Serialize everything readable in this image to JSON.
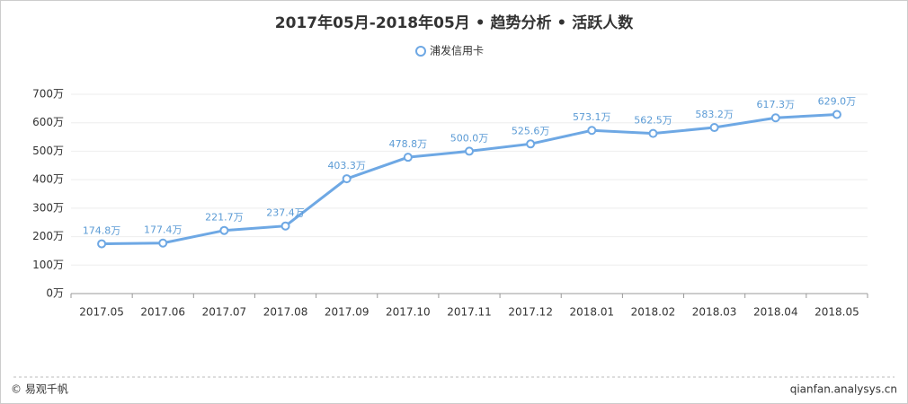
{
  "chart_data": {
    "type": "line",
    "title": "2017年05月-2018年05月 • 趋势分析 • 活跃人数",
    "categories": [
      "2017.05",
      "2017.06",
      "2017.07",
      "2017.08",
      "2017.09",
      "2017.10",
      "2017.11",
      "2017.12",
      "2018.01",
      "2018.02",
      "2018.03",
      "2018.04",
      "2018.05"
    ],
    "series": [
      {
        "name": "浦发信用卡",
        "color": "#6ea8e4",
        "values": [
          174.8,
          177.4,
          221.7,
          237.4,
          403.3,
          478.8,
          500.0,
          525.6,
          573.1,
          562.5,
          583.2,
          617.3,
          629.0
        ],
        "value_labels": [
          "174.8万",
          "177.4万",
          "221.7万",
          "237.4万",
          "403.3万",
          "478.8万",
          "500.0万",
          "525.6万",
          "573.1万",
          "562.5万",
          "583.2万",
          "617.3万",
          "629.0万"
        ]
      }
    ],
    "ylim": [
      0,
      700
    ],
    "yticks": [
      {
        "value": 0,
        "label": "0万"
      },
      {
        "value": 100,
        "label": "100万"
      },
      {
        "value": 200,
        "label": "200万"
      },
      {
        "value": 300,
        "label": "300万"
      },
      {
        "value": 400,
        "label": "400万"
      },
      {
        "value": 500,
        "label": "500万"
      },
      {
        "value": 600,
        "label": "600万"
      },
      {
        "value": 700,
        "label": "700万"
      }
    ],
    "grid": true
  },
  "footer": {
    "left": "© 易观千帆",
    "right": "qianfan.analysys.cn"
  }
}
